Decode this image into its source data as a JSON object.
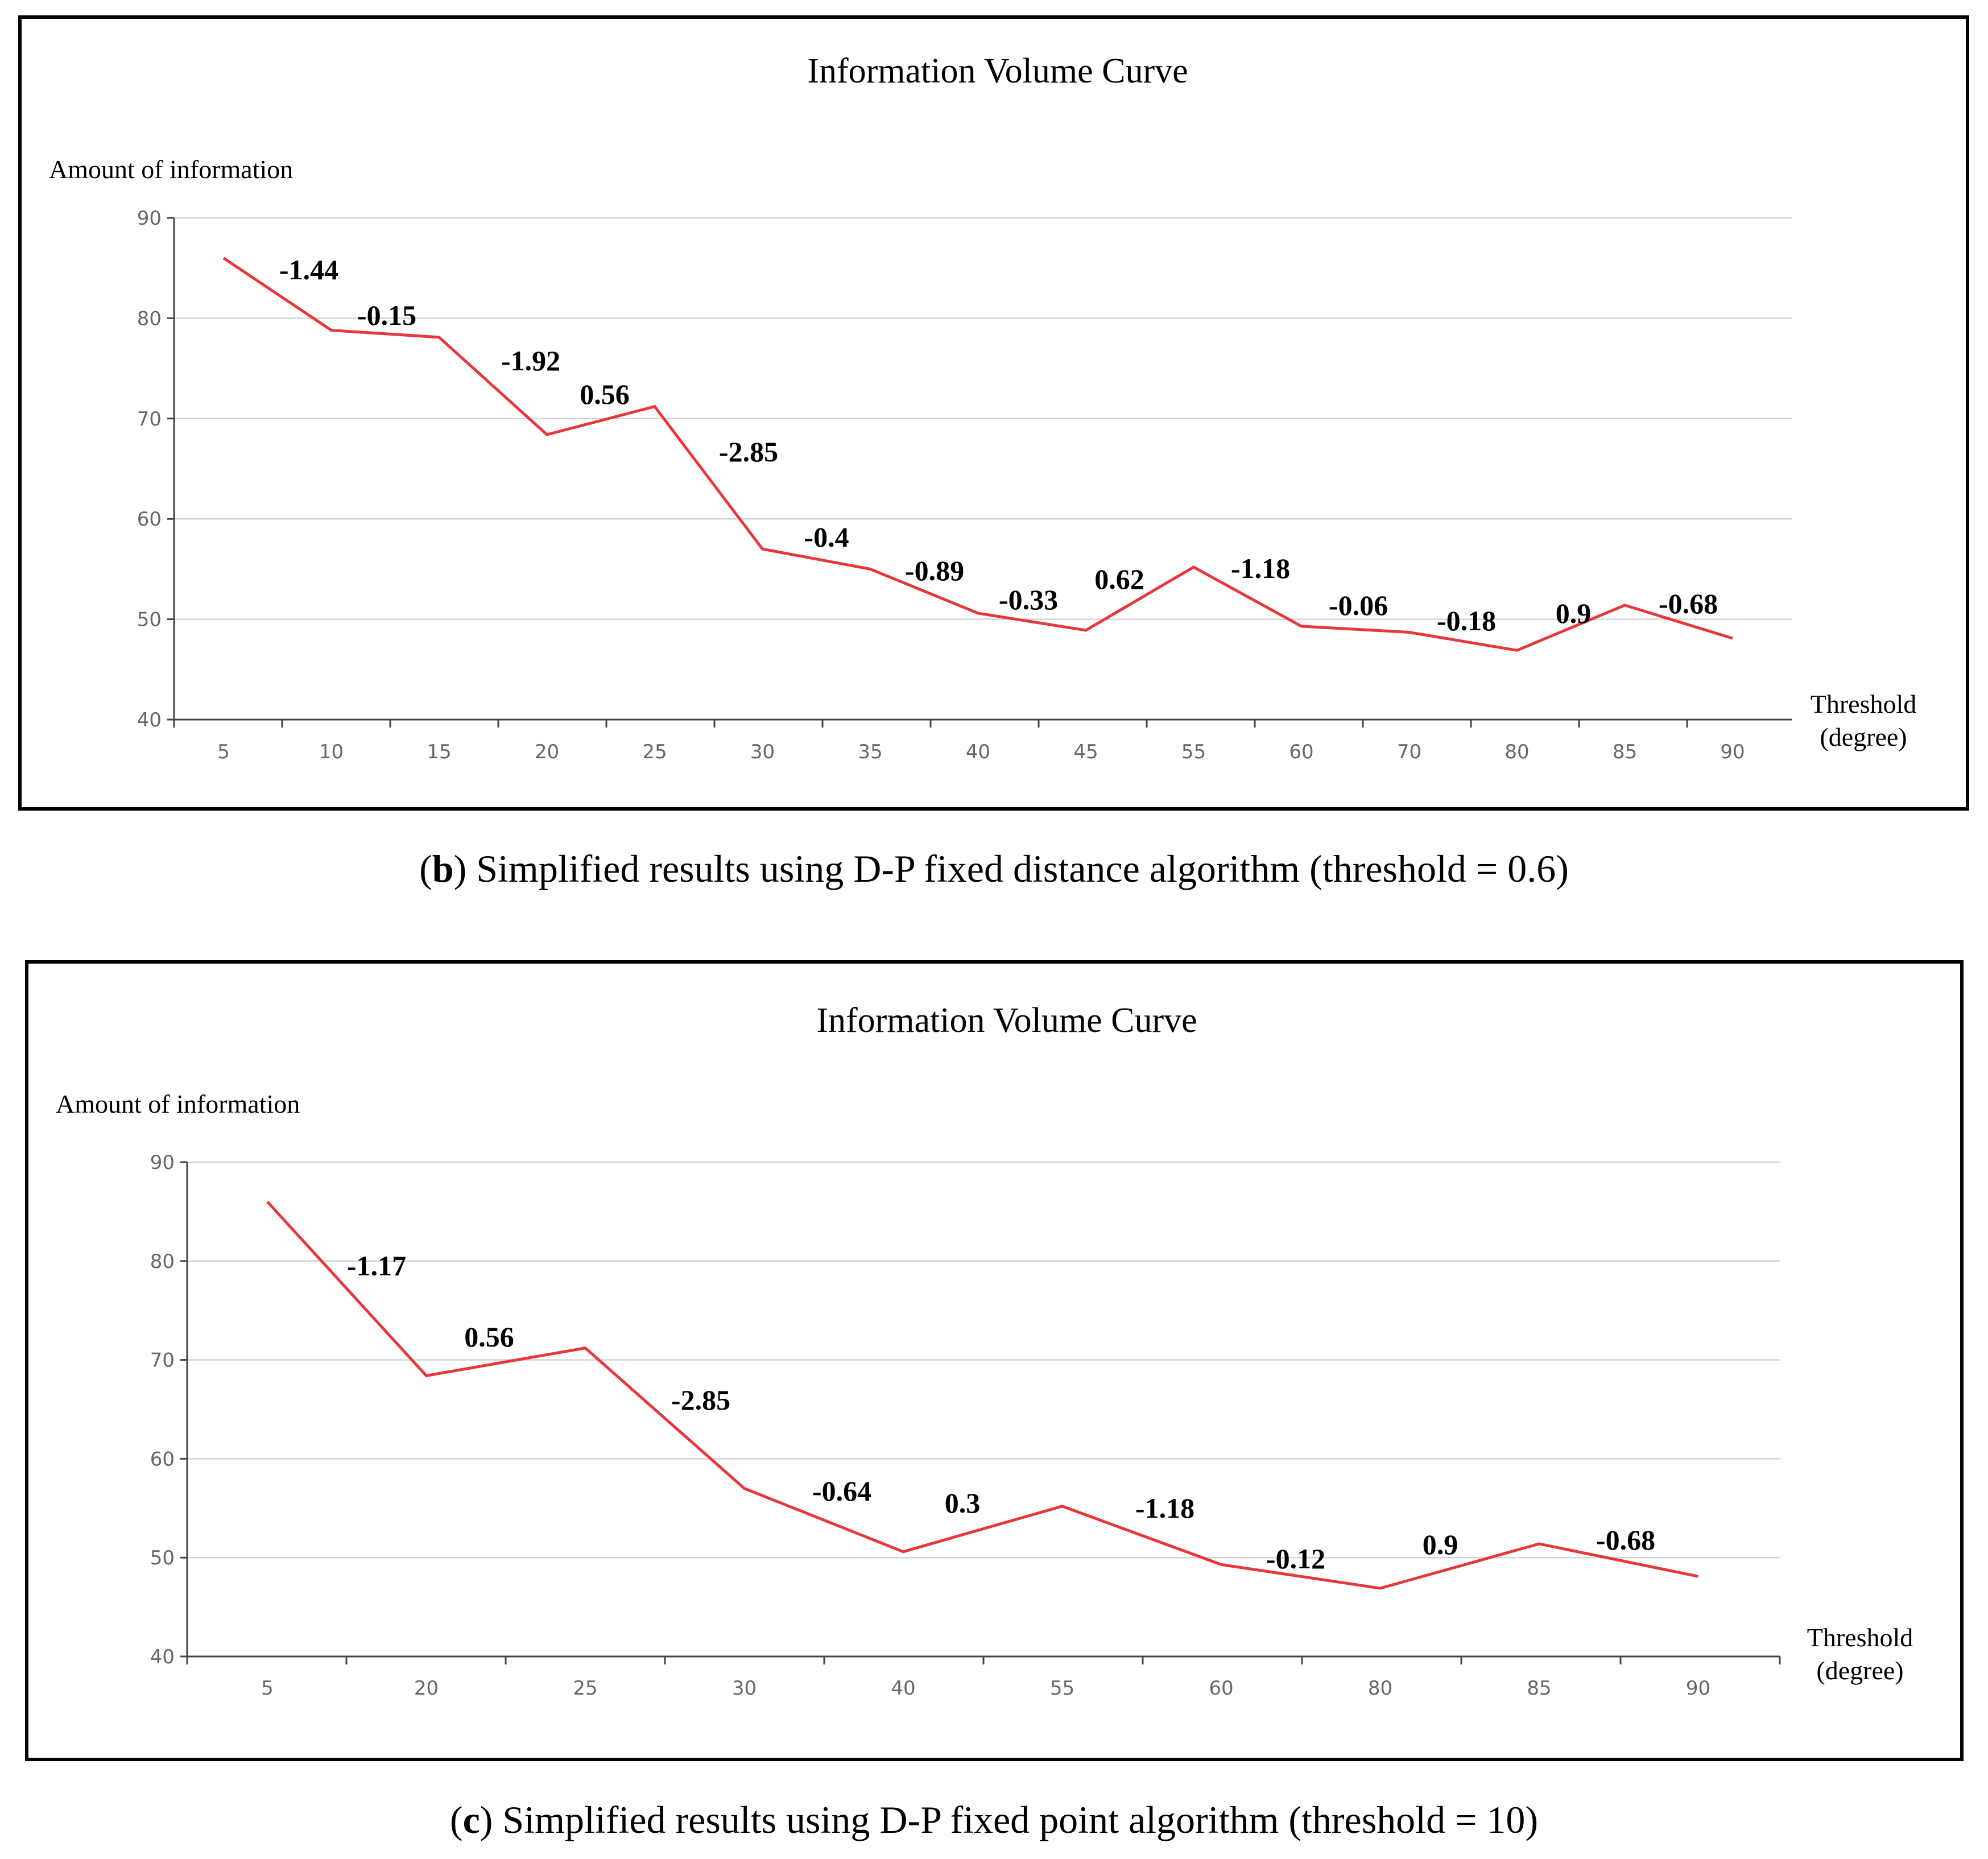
{
  "chart_data": [
    {
      "type": "line",
      "title": "Information Volume Curve",
      "ylabel": "Amount of information",
      "xlabel_lines": [
        "Threshold",
        "(degree)"
      ],
      "ylim": [
        40,
        90
      ],
      "yticks": [
        40,
        50,
        60,
        70,
        80,
        90
      ],
      "categories": [
        "5",
        "10",
        "15",
        "20",
        "25",
        "30",
        "35",
        "40",
        "45",
        "55",
        "60",
        "70",
        "80",
        "85",
        "90"
      ],
      "series": [
        {
          "name": "Information",
          "color": "#e8373a",
          "values": [
            86,
            78.8,
            78.1,
            68.4,
            71.2,
            57,
            55,
            50.6,
            48.9,
            55.2,
            49.3,
            48.7,
            46.9,
            51.4,
            48.1
          ]
        }
      ],
      "annotations": [
        "-1.44",
        "-0.15",
        "-1.92",
        "0.56",
        "-2.85",
        "-0.4",
        "-0.89",
        "-0.33",
        "0.62",
        "-1.18",
        "-0.06",
        "-0.18",
        "0.9",
        "-0.68"
      ]
    },
    {
      "type": "line",
      "title": "Information Volume Curve",
      "ylabel": "Amount of information",
      "xlabel_lines": [
        "Threshold",
        "(degree)"
      ],
      "ylim": [
        40,
        90
      ],
      "yticks": [
        40,
        50,
        60,
        70,
        80,
        90
      ],
      "categories": [
        "5",
        "20",
        "25",
        "30",
        "40",
        "55",
        "60",
        "80",
        "85",
        "90"
      ],
      "series": [
        {
          "name": "Information",
          "color": "#e8373a",
          "values": [
            86,
            68.4,
            71.2,
            57,
            50.6,
            55.2,
            49.3,
            46.9,
            51.4,
            48.1
          ]
        }
      ],
      "annotations": [
        "-1.17",
        "0.56",
        "-2.85",
        "-0.64",
        "0.3",
        "-1.18",
        "-0.12",
        "0.9",
        "-0.68"
      ]
    }
  ],
  "captions": [
    {
      "open": "(",
      "letter": "b",
      "text": ") Simplified results using D-P fixed distance algorithm (threshold = 0.6)"
    },
    {
      "open": "(",
      "letter": "c",
      "text": ") Simplified results using D-P fixed point algorithm (threshold = 10)"
    }
  ]
}
